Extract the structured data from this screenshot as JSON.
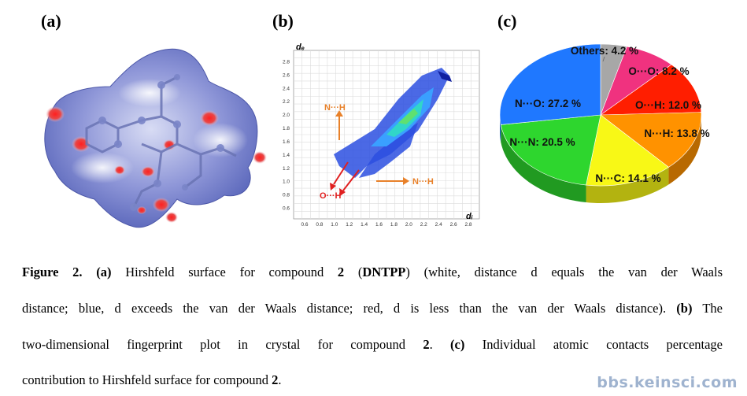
{
  "panels": {
    "a": {
      "label": "(a)"
    },
    "b": {
      "label": "(b)",
      "y_axis_label": "dₑ",
      "x_axis_label": "dᵢ",
      "y_ticks": [
        "0.6",
        "0.8",
        "1.0",
        "1.2",
        "1.4",
        "1.6",
        "1.8",
        "2.0",
        "2.2",
        "2.4",
        "2.6",
        "2.8"
      ],
      "x_ticks": [
        "0.6",
        "0.8",
        "1.0",
        "1.2",
        "1.4",
        "1.6",
        "1.8",
        "2.0",
        "2.2",
        "2.4",
        "2.6",
        "2.8"
      ],
      "annotations": {
        "nh_top": "N···H",
        "nh_right": "N···H",
        "oh": "O···H"
      }
    },
    "c": {
      "label": "(c)"
    }
  },
  "chart_data": {
    "type": "pie",
    "slices": [
      {
        "label": "Others: 4.2 %",
        "value": 4.2,
        "color": "#a7a7a7"
      },
      {
        "label": "O···O: 8.2 %",
        "value": 8.2,
        "color": "#f0327f"
      },
      {
        "label": "O···H: 12.0 %",
        "value": 12.0,
        "color": "#ff1e00"
      },
      {
        "label": "N···H: 13.8 %",
        "value": 13.8,
        "color": "#ff9200"
      },
      {
        "label": "N···C: 14.1 %",
        "value": 14.1,
        "color": "#f8f816"
      },
      {
        "label": "N···N: 20.5 %",
        "value": 20.5,
        "color": "#2ed62e"
      },
      {
        "label": "N···O: 27.2 %",
        "value": 27.2,
        "color": "#1f78ff"
      }
    ]
  },
  "caption": {
    "fig": "Figure 2.",
    "a": "(a)",
    "t1": " Hirshfeld surface for compound ",
    "num": "2",
    "t2": " (",
    "dntpp": "DNTPP",
    "t3": ") (white, distance d equals the van der Waals",
    "l2": "distance; blue, d exceeds the van der Waals distance; red, d is less than the van der Waals distance). ",
    "b": "(b)",
    "t4": " The",
    "l3a": "two-dimensional fingerprint plot in crystal for compound ",
    "t5": ". ",
    "c": "(c)",
    "t6": " Individual atomic contacts percentage",
    "l4a": "contribution to Hirshfeld surface for compound ",
    "t7": "."
  },
  "watermark": "bbs.keinsci.com"
}
